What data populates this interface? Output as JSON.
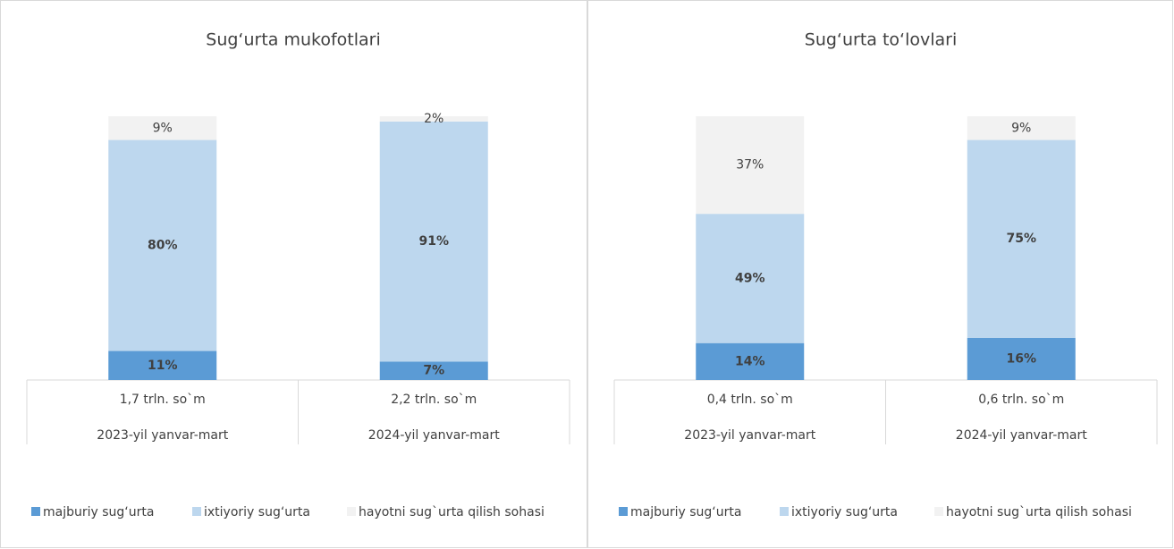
{
  "chart_data": [
    {
      "type": "bar",
      "stacked": true,
      "title": "Sug‘urta mukofotlari",
      "categories": [
        "2023-yil yanvar-mart",
        "2024-yil yanvar-mart"
      ],
      "category_sublabels": [
        "1,7 trln. so`m",
        "2,2 trln. so`m"
      ],
      "ylim": [
        0,
        100
      ],
      "legend": "bottom",
      "series": [
        {
          "name": "majburiy sug‘urta",
          "color": "#5b9bd5",
          "bold_labels": true,
          "values": [
            11,
            7
          ],
          "value_labels": [
            "11%",
            "7%"
          ]
        },
        {
          "name": "ixtiyoriy sug‘urta",
          "color": "#bdd7ee",
          "bold_labels": true,
          "values": [
            80,
            91
          ],
          "value_labels": [
            "80%",
            "91%"
          ]
        },
        {
          "name": "hayotni sug`urta qilish sohasi",
          "color": "#f2f2f2",
          "bold_labels": false,
          "values": [
            9,
            2
          ],
          "value_labels": [
            "9%",
            "2%"
          ]
        }
      ]
    },
    {
      "type": "bar",
      "stacked": true,
      "title": "Sug‘urta to‘lovlari",
      "categories": [
        "2023-yil yanvar-mart",
        "2024-yil yanvar-mart"
      ],
      "category_sublabels": [
        "0,4 trln. so`m",
        "0,6 trln. so`m"
      ],
      "ylim": [
        0,
        100
      ],
      "legend": "bottom",
      "series": [
        {
          "name": "majburiy sug‘urta",
          "color": "#5b9bd5",
          "bold_labels": true,
          "values": [
            14,
            16
          ],
          "value_labels": [
            "14%",
            "16%"
          ]
        },
        {
          "name": "ixtiyoriy sug‘urta",
          "color": "#bdd7ee",
          "bold_labels": true,
          "values": [
            49,
            75
          ],
          "value_labels": [
            "49%",
            "75%"
          ]
        },
        {
          "name": "hayotni sug`urta qilish sohasi",
          "color": "#f2f2f2",
          "bold_labels": false,
          "values": [
            37,
            9
          ],
          "value_labels": [
            "37%",
            "9%"
          ]
        }
      ]
    }
  ]
}
